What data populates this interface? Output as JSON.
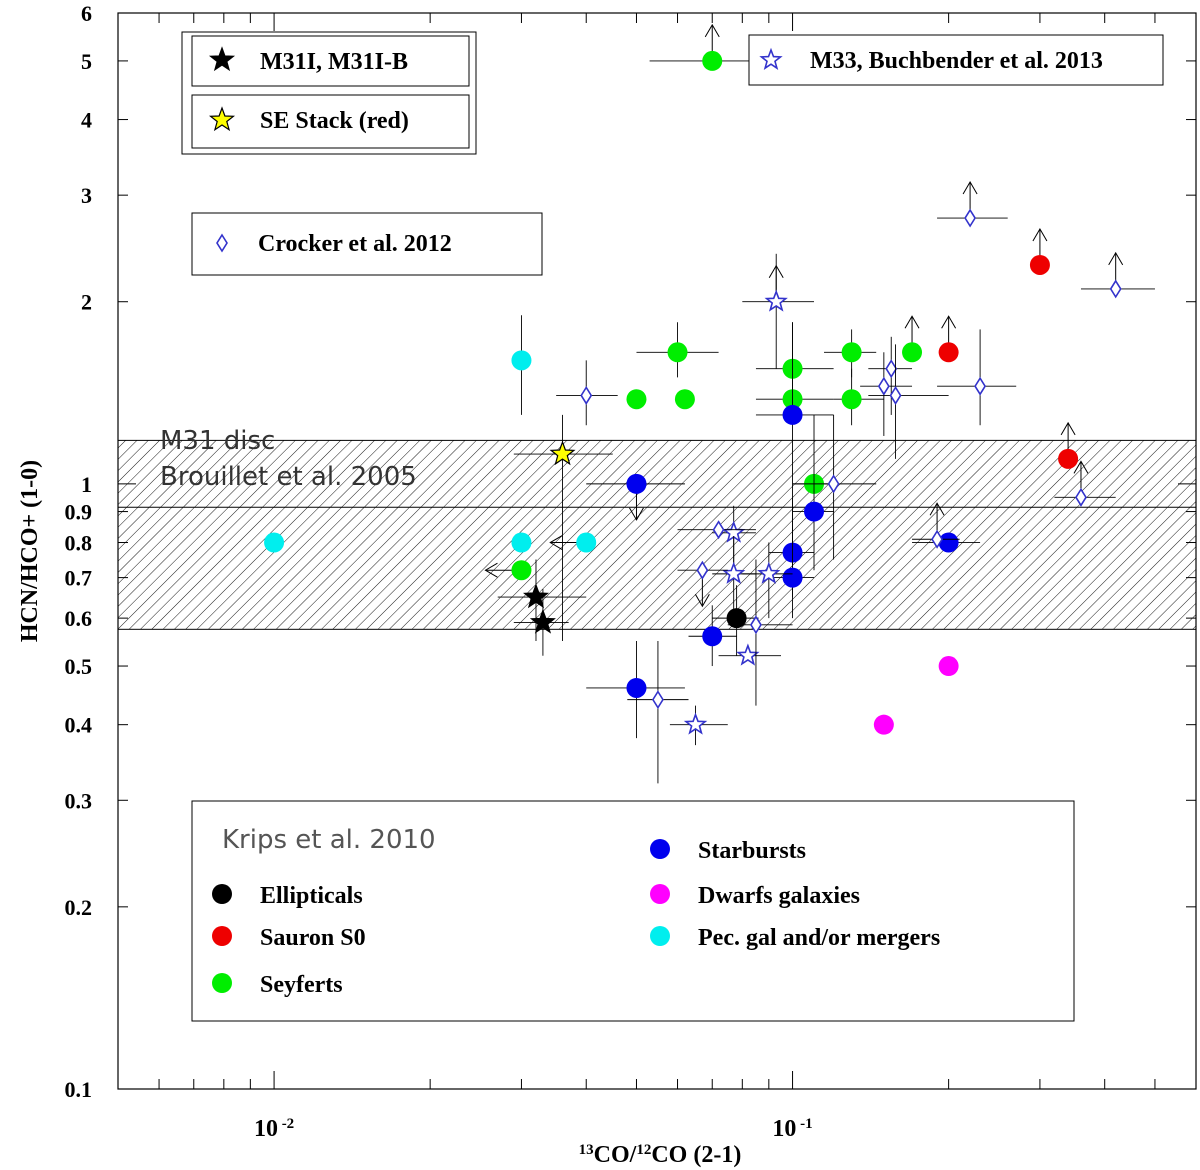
{
  "chart_data": {
    "type": "scatter",
    "xscale": "log",
    "yscale": "log",
    "xlim": [
      0.005,
      0.6
    ],
    "ylim": [
      0.1,
      6
    ],
    "xlabel": {
      "sup1": "13",
      "t1": "CO/",
      "sup2": "12",
      "t2": "CO (2-1)"
    },
    "ylabel": "HCN/HCO+ (1-0)",
    "xticks": [
      {
        "value": 0.01,
        "base": "10",
        "exp": " -2"
      },
      {
        "value": 0.1,
        "base": "10",
        "exp": " -1"
      }
    ],
    "yticks": [
      {
        "value": 0.1,
        "label": "0.1"
      },
      {
        "value": 0.2,
        "label": "0.2"
      },
      {
        "value": 0.3,
        "label": "0.3"
      },
      {
        "value": 0.4,
        "label": "0.4"
      },
      {
        "value": 0.5,
        "label": "0.5"
      },
      {
        "value": 0.6,
        "label": "0.6"
      },
      {
        "value": 0.7,
        "label": "0.7"
      },
      {
        "value": 0.8,
        "label": "0.8"
      },
      {
        "value": 0.9,
        "label": "0.9"
      },
      {
        "value": 1,
        "label": "1"
      },
      {
        "value": 2,
        "label": "2"
      },
      {
        "value": 3,
        "label": "3"
      },
      {
        "value": 4,
        "label": "4"
      },
      {
        "value": 5,
        "label": "5"
      },
      {
        "value": 6,
        "label": "6"
      }
    ],
    "band": {
      "ymin": 0.575,
      "ymax": 1.18,
      "mid": 0.915,
      "line1": "M31 disc",
      "line2": "Brouillet et al. 2005"
    },
    "legends": {
      "m31": "M31I, M31I-B",
      "stack": "SE Stack (red)",
      "m33": "M33, Buchbender et al. 2013",
      "crocker": "Crocker et al. 2012",
      "krips_title": "Krips et al. 2010",
      "ellipticals": "Ellipticals",
      "sauron": "Sauron S0",
      "seyferts": "Seyferts",
      "starbursts": "Starbursts",
      "dwarfs": "Dwarfs galaxies",
      "pec": "Pec. gal and/or mergers"
    },
    "colors": {
      "ellipticals": "#000000",
      "sauron": "#ee0000",
      "seyferts": "#00ee00",
      "starbursts": "#0000ee",
      "dwarfs": "#ff00ff",
      "pec": "#00eeee",
      "open_markers": "#3333cc",
      "stack": "#ffff00"
    },
    "series": [
      {
        "name": "Ellipticals",
        "marker": "circle",
        "color_key": "ellipticals",
        "points": [
          {
            "x": 0.078,
            "y": 0.6,
            "xe": [
              0.07,
              0.086
            ],
            "ye": [
              0.52,
              0.68
            ]
          }
        ]
      },
      {
        "name": "Sauron S0",
        "marker": "circle",
        "color_key": "sauron",
        "points": [
          {
            "x": 0.2,
            "y": 1.65,
            "up": true
          },
          {
            "x": 0.3,
            "y": 2.3,
            "up": true
          },
          {
            "x": 0.34,
            "y": 1.1,
            "up": true
          }
        ]
      },
      {
        "name": "Seyferts",
        "marker": "circle",
        "color_key": "seyferts",
        "points": [
          {
            "x": 0.07,
            "y": 5.0,
            "xe": [
              0.053,
              0.09
            ],
            "up": true
          },
          {
            "x": 0.06,
            "y": 1.65,
            "xe": [
              0.05,
              0.072
            ],
            "ye": [
              1.5,
              1.85
            ]
          },
          {
            "x": 0.05,
            "y": 1.38
          },
          {
            "x": 0.062,
            "y": 1.38
          },
          {
            "x": 0.1,
            "y": 1.55,
            "xe": [
              0.085,
              0.12
            ],
            "ye": [
              1.3,
              1.85
            ]
          },
          {
            "x": 0.1,
            "y": 1.38,
            "xe": [
              0.085,
              0.12
            ]
          },
          {
            "x": 0.13,
            "y": 1.65,
            "xe": [
              0.115,
              0.145
            ],
            "ye": [
              1.5,
              1.8
            ]
          },
          {
            "x": 0.13,
            "y": 1.38,
            "xe": [
              0.12,
              0.15
            ],
            "ye": [
              1.25,
              1.55
            ]
          },
          {
            "x": 0.17,
            "y": 1.65,
            "up": true
          },
          {
            "x": 0.11,
            "y": 1.0,
            "xe": [
              0.1,
              0.12
            ]
          },
          {
            "x": 0.03,
            "y": 0.72,
            "left": true
          }
        ]
      },
      {
        "name": "Starbursts",
        "marker": "circle",
        "color_key": "starbursts",
        "points": [
          {
            "x": 0.05,
            "y": 1.0,
            "xe": [
              0.04,
              0.062
            ],
            "down": true
          },
          {
            "x": 0.1,
            "y": 1.3,
            "xe": [
              0.085,
              0.12
            ],
            "ye": [
              0.72,
              1.85
            ]
          },
          {
            "x": 0.11,
            "y": 0.9,
            "xe": [
              0.1,
              0.12
            ],
            "ye": [
              0.72,
              1.3
            ]
          },
          {
            "x": 0.1,
            "y": 0.77,
            "xe": [
              0.09,
              0.11
            ],
            "ye": [
              0.65,
              0.95
            ]
          },
          {
            "x": 0.1,
            "y": 0.7,
            "xe": [
              0.09,
              0.11
            ],
            "ye": [
              0.6,
              0.85
            ]
          },
          {
            "x": 0.2,
            "y": 0.8,
            "xe": [
              0.17,
              0.23
            ]
          },
          {
            "x": 0.07,
            "y": 0.56,
            "xe": [
              0.063,
              0.078
            ],
            "ye": [
              0.5,
              0.63
            ]
          },
          {
            "x": 0.05,
            "y": 0.46,
            "xe": [
              0.04,
              0.062
            ],
            "ye": [
              0.38,
              0.55
            ]
          }
        ]
      },
      {
        "name": "Dwarfs galaxies",
        "marker": "circle",
        "color_key": "dwarfs",
        "points": [
          {
            "x": 0.15,
            "y": 0.4
          },
          {
            "x": 0.2,
            "y": 0.5
          }
        ]
      },
      {
        "name": "Pec. gal and/or mergers",
        "marker": "circle",
        "color_key": "pec",
        "points": [
          {
            "x": 0.01,
            "y": 0.8
          },
          {
            "x": 0.03,
            "y": 1.6,
            "ye": [
              1.3,
              1.9
            ]
          },
          {
            "x": 0.03,
            "y": 0.8
          },
          {
            "x": 0.04,
            "y": 0.8,
            "left": true
          }
        ]
      },
      {
        "name": "M31I, M31I-B",
        "marker": "star",
        "color_key": "ellipticals",
        "points": [
          {
            "x": 0.032,
            "y": 0.65,
            "xe": [
              0.027,
              0.04
            ],
            "ye": [
              0.55,
              0.75
            ]
          },
          {
            "x": 0.033,
            "y": 0.59,
            "xe": [
              0.029,
              0.037
            ],
            "ye": [
              0.52,
              0.67
            ]
          }
        ]
      },
      {
        "name": "SE Stack (red)",
        "marker": "star",
        "color_key": "stack",
        "points": [
          {
            "x": 0.036,
            "y": 1.12,
            "xe": [
              0.029,
              0.045
            ],
            "ye": [
              0.55,
              1.3
            ]
          }
        ]
      },
      {
        "name": "M33, Buchbender et al. 2013",
        "marker": "open-star",
        "color_key": "open_markers",
        "points": [
          {
            "x": 0.093,
            "y": 2.0,
            "xe": [
              0.08,
              0.11
            ],
            "ye": [
              1.55,
              2.4
            ],
            "up": true
          },
          {
            "x": 0.077,
            "y": 0.83,
            "xe": [
              0.07,
              0.085
            ],
            "ye": [
              0.72,
              0.92
            ]
          },
          {
            "x": 0.077,
            "y": 0.71,
            "xe": [
              0.07,
              0.085
            ],
            "ye": [
              0.6,
              0.82
            ]
          },
          {
            "x": 0.09,
            "y": 0.71,
            "xe": [
              0.08,
              0.1
            ],
            "ye": [
              0.6,
              0.8
            ]
          },
          {
            "x": 0.082,
            "y": 0.52,
            "xe": [
              0.072,
              0.095
            ]
          },
          {
            "x": 0.065,
            "y": 0.4,
            "xe": [
              0.058,
              0.075
            ],
            "ye": [
              0.37,
              0.43
            ]
          }
        ]
      },
      {
        "name": "Crocker et al. 2012",
        "marker": "diamond",
        "color_key": "open_markers",
        "points": [
          {
            "x": 0.22,
            "y": 2.75,
            "xe": [
              0.19,
              0.26
            ],
            "up": true
          },
          {
            "x": 0.42,
            "y": 2.1,
            "xe": [
              0.36,
              0.5
            ],
            "up": true
          },
          {
            "x": 0.23,
            "y": 1.45,
            "xe": [
              0.19,
              0.27
            ],
            "ye": [
              1.25,
              1.8
            ]
          },
          {
            "x": 0.155,
            "y": 1.55,
            "xe": [
              0.14,
              0.17
            ],
            "ye": [
              1.3,
              1.75
            ]
          },
          {
            "x": 0.15,
            "y": 1.45,
            "xe": [
              0.135,
              0.17
            ],
            "ye": [
              1.2,
              1.65
            ]
          },
          {
            "x": 0.158,
            "y": 1.4,
            "xe": [
              0.14,
              0.2
            ],
            "ye": [
              1.1,
              1.7
            ]
          },
          {
            "x": 0.04,
            "y": 1.4,
            "xe": [
              0.035,
              0.046
            ],
            "ye": [
              1.25,
              1.6
            ]
          },
          {
            "x": 0.12,
            "y": 1.0,
            "xe": [
              0.1,
              0.145
            ],
            "ye": [
              0.75,
              1.3
            ]
          },
          {
            "x": 0.36,
            "y": 0.95,
            "xe": [
              0.32,
              0.42
            ],
            "up": true
          },
          {
            "x": 0.19,
            "y": 0.81,
            "xe": [
              0.17,
              0.21
            ],
            "up": true
          },
          {
            "x": 0.072,
            "y": 0.84,
            "xe": [
              0.06,
              0.085
            ]
          },
          {
            "x": 0.067,
            "y": 0.72,
            "xe": [
              0.06,
              0.075
            ],
            "down": true
          },
          {
            "x": 0.085,
            "y": 0.585,
            "xe": [
              0.075,
              0.1
            ],
            "ye": [
              0.43,
              0.75
            ]
          },
          {
            "x": 0.055,
            "y": 0.44,
            "xe": [
              0.048,
              0.063
            ],
            "ye": [
              0.32,
              0.55
            ]
          }
        ]
      }
    ]
  }
}
